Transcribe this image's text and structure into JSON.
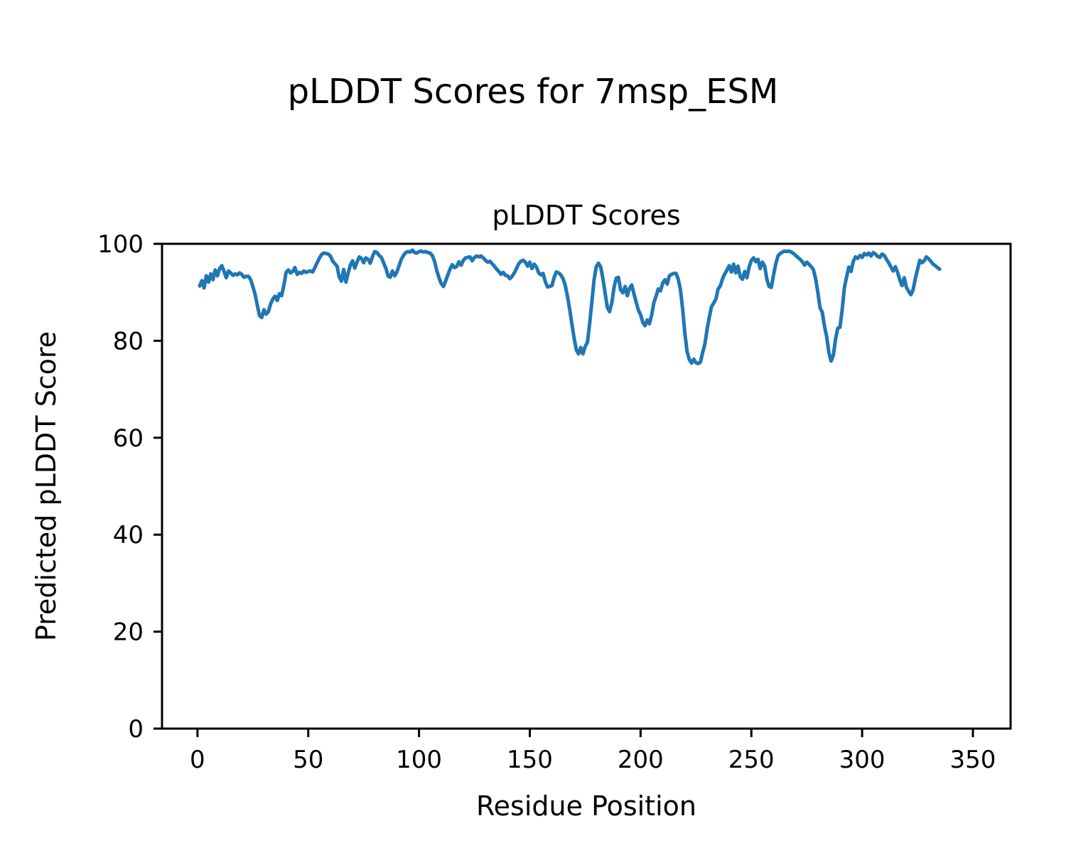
{
  "figure": {
    "suptitle": "pLDDT Scores for 7msp_ESM",
    "background": "#ffffff"
  },
  "chart_data": {
    "type": "line",
    "title": "pLDDT Scores",
    "xlabel": "Residue Position",
    "ylabel": "Predicted pLDDT Score",
    "xlim": [
      -16,
      367
    ],
    "ylim": [
      0,
      100
    ],
    "xticks": [
      0,
      50,
      100,
      150,
      200,
      250,
      300,
      350
    ],
    "yticks": [
      0,
      20,
      40,
      60,
      80,
      100
    ],
    "grid": false,
    "legend": "none",
    "line_color": "#1f77b4",
    "line_width": 5,
    "spine_color": "#000000",
    "series": [
      {
        "name": "pLDDT",
        "x_start": 1,
        "x_step": 1,
        "values": [
          91.3,
          92.4,
          90.9,
          93.4,
          92.1,
          93.8,
          92.6,
          94.6,
          93.4,
          94.9,
          95.5,
          94.3,
          93.0,
          94.4,
          94.0,
          93.5,
          93.8,
          93.6,
          94.0,
          93.7,
          93.1,
          93.3,
          93.3,
          92.6,
          91.2,
          89.6,
          87.3,
          85.2,
          84.8,
          86.4,
          85.5,
          86.0,
          87.6,
          88.6,
          89.2,
          88.3,
          89.7,
          89.3,
          91.5,
          94.1,
          94.6,
          94.0,
          94.3,
          95.1,
          93.7,
          94.1,
          93.9,
          94.4,
          94.1,
          94.3,
          94.4,
          94.2,
          95.1,
          96.1,
          97.0,
          97.8,
          98.1,
          98.0,
          97.9,
          97.5,
          96.5,
          95.9,
          95.4,
          93.1,
          92.3,
          94.7,
          92.1,
          94.0,
          95.6,
          96.5,
          95.0,
          96.2,
          97.3,
          97.0,
          96.1,
          97.1,
          96.8,
          96.0,
          97.4,
          98.4,
          98.2,
          97.6,
          97.2,
          96.1,
          95.0,
          93.4,
          93.1,
          94.4,
          93.4,
          94.2,
          95.5,
          96.8,
          97.6,
          98.2,
          98.4,
          98.3,
          98.7,
          98.2,
          98.1,
          98.4,
          98.5,
          98.3,
          98.4,
          98.2,
          98.1,
          97.6,
          96.4,
          94.5,
          93.0,
          91.8,
          91.2,
          92.3,
          93.6,
          94.8,
          95.7,
          95.1,
          95.3,
          96.3,
          95.6,
          96.6,
          97.1,
          97.2,
          97.3,
          96.5,
          97.2,
          97.5,
          97.3,
          97.5,
          97.1,
          96.6,
          96.2,
          96.4,
          95.9,
          95.4,
          94.8,
          94.3,
          93.7,
          94.1,
          93.5,
          93.4,
          92.8,
          93.3,
          94.0,
          94.9,
          95.9,
          96.4,
          96.6,
          96.2,
          95.4,
          96.2,
          94.9,
          95.8,
          95.2,
          94.0,
          93.6,
          93.9,
          92.2,
          91.1,
          91.2,
          91.4,
          93.1,
          94.2,
          94.0,
          93.6,
          92.8,
          91.4,
          89.2,
          86.5,
          83.5,
          80.5,
          78.1,
          77.3,
          78.6,
          77.3,
          78.8,
          79.7,
          83.5,
          88.0,
          92.5,
          95.3,
          96.0,
          95.2,
          92.8,
          89.8,
          86.9,
          86.0,
          87.8,
          91.0,
          92.9,
          93.1,
          90.5,
          89.9,
          91.2,
          89.3,
          90.8,
          91.5,
          89.7,
          88.0,
          86.3,
          85.4,
          83.8,
          83.1,
          84.3,
          83.5,
          85.3,
          87.9,
          89.2,
          90.7,
          90.3,
          91.9,
          92.6,
          91.7,
          93.4,
          93.7,
          93.9,
          93.9,
          92.7,
          90.5,
          86.5,
          81.5,
          77.8,
          76.1,
          75.4,
          76.2,
          75.5,
          75.3,
          75.6,
          77.6,
          79.3,
          82.3,
          84.8,
          87.0,
          87.8,
          88.6,
          90.7,
          91.3,
          92.8,
          93.8,
          94.6,
          95.5,
          94.2,
          95.8,
          94.0,
          95.4,
          93.2,
          92.7,
          94.3,
          93.0,
          95.2,
          96.6,
          97.1,
          96.3,
          96.8,
          94.9,
          96.2,
          95.4,
          92.7,
          91.2,
          91.0,
          93.5,
          95.8,
          97.5,
          98.0,
          98.3,
          98.5,
          98.4,
          98.5,
          98.3,
          98.0,
          97.6,
          97.2,
          96.8,
          96.3,
          95.6,
          96.2,
          95.8,
          95.3,
          94.7,
          92.8,
          90.0,
          86.8,
          85.9,
          83.0,
          80.9,
          77.5,
          75.8,
          77.0,
          80.3,
          82.6,
          82.8,
          86.5,
          91.0,
          93.2,
          95.2,
          94.3,
          96.4,
          97.3,
          97.0,
          97.6,
          97.2,
          98.0,
          97.7,
          98.1,
          97.5,
          98.2,
          97.9,
          97.4,
          97.2,
          97.9,
          97.6,
          96.8,
          96.1,
          95.2,
          94.4,
          95.3,
          94.1,
          92.6,
          91.4,
          93.0,
          91.0,
          90.2,
          89.5,
          90.5,
          92.8,
          94.7,
          96.6,
          96.1,
          96.5,
          97.3,
          96.9,
          96.4,
          95.8,
          95.5,
          95.1,
          94.8
        ]
      }
    ]
  }
}
